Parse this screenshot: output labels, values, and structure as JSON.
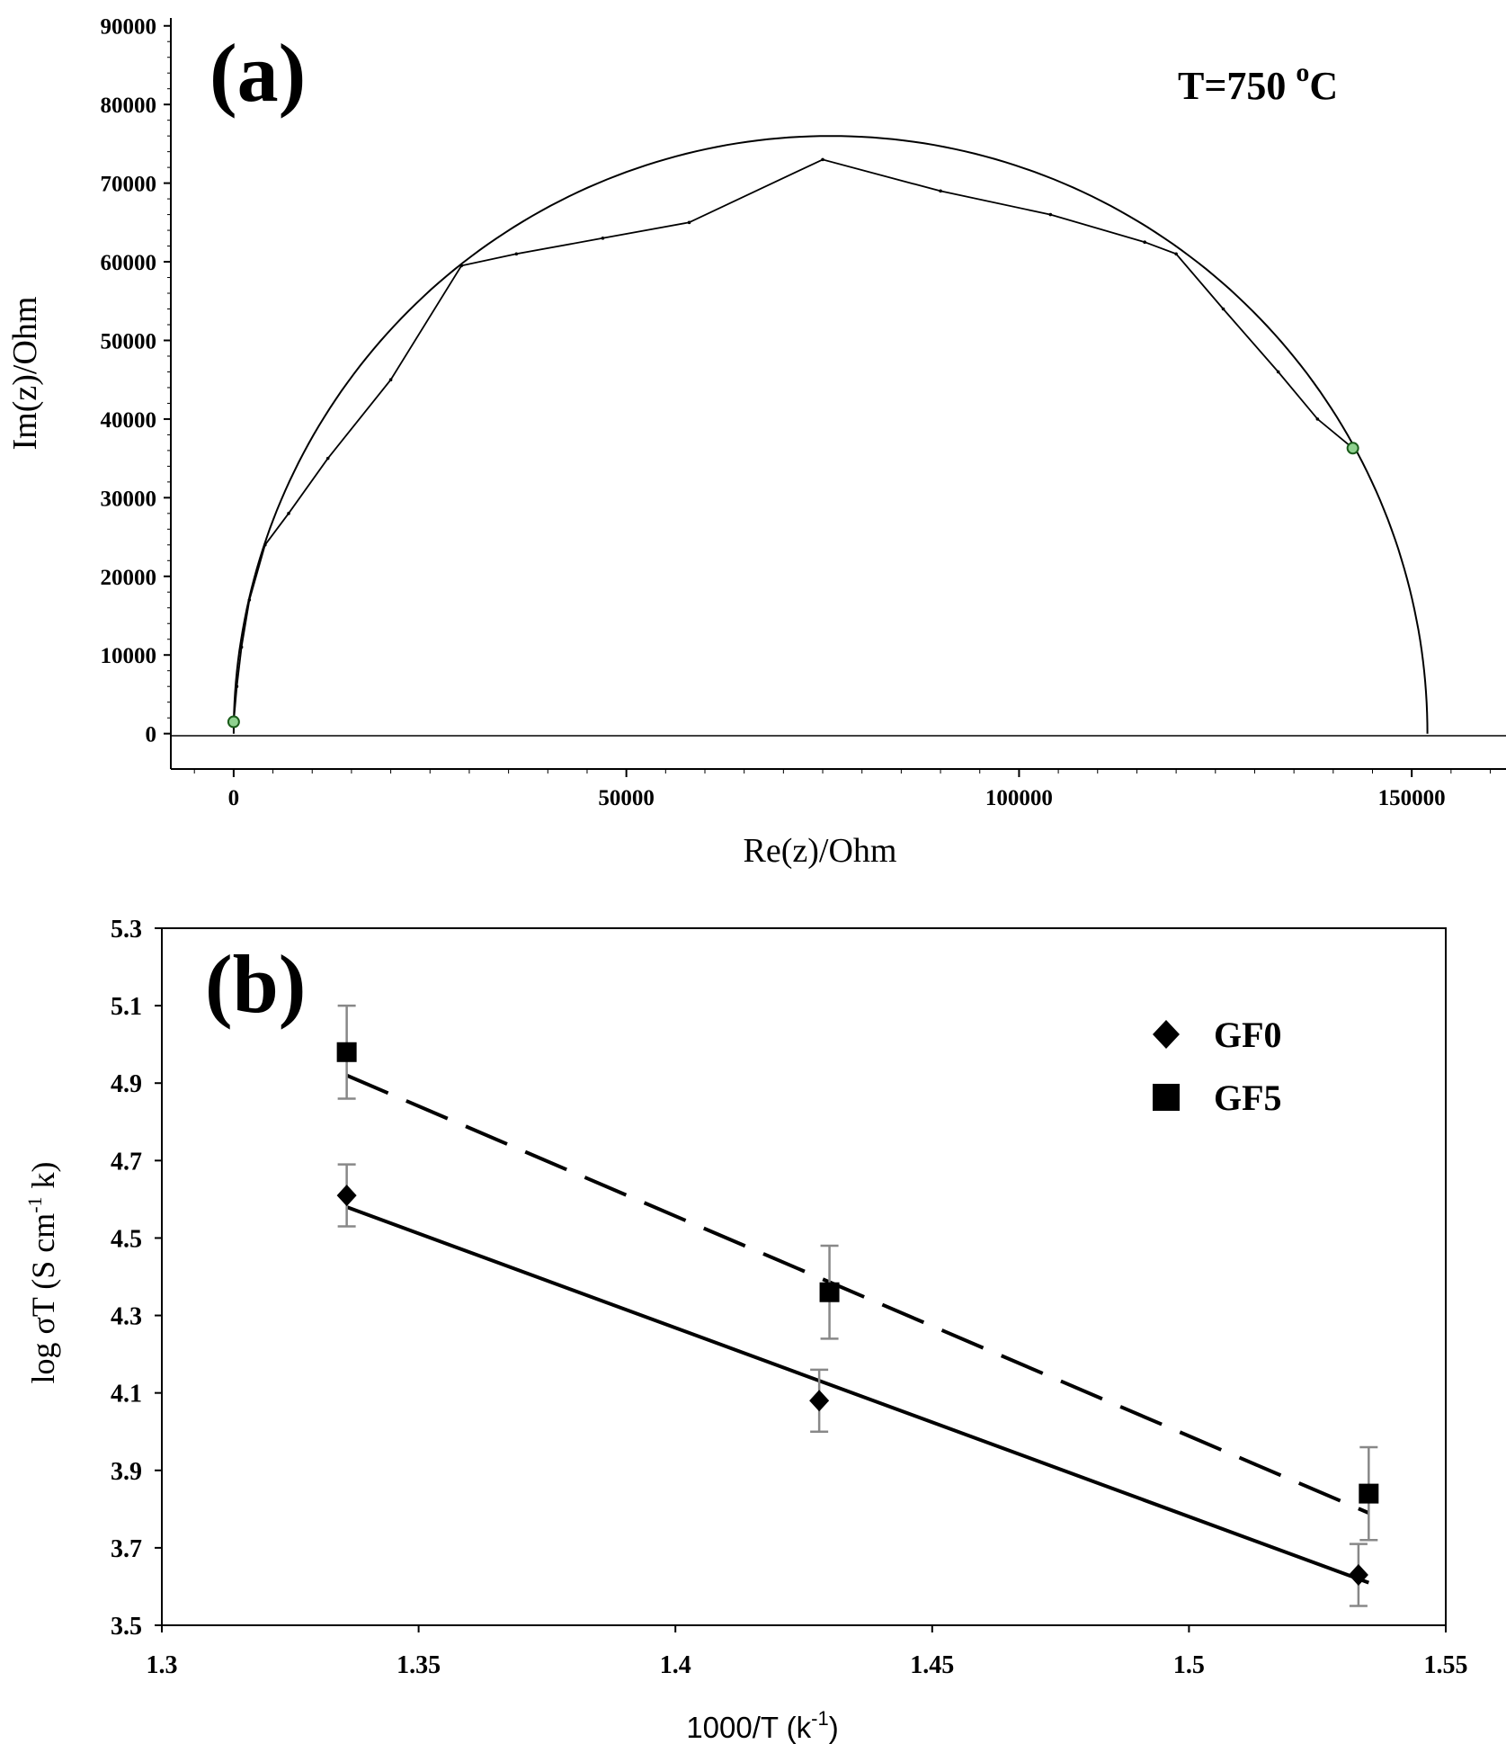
{
  "chart_data": [
    {
      "panel": "(a)",
      "type": "line",
      "annotation": {
        "base": "T=750 ",
        "sup": "o",
        "tail": "C"
      },
      "xlabel": "Re(z)/Ohm",
      "ylabel": "Im(z)/Ohm",
      "xlim": [
        -8000,
        162000
      ],
      "ylim": [
        -4500,
        91000
      ],
      "xticks": [
        0,
        50000,
        100000,
        150000
      ],
      "xtick_labels": [
        "0",
        "50000",
        "100000",
        "150000"
      ],
      "yticks": [
        0,
        10000,
        20000,
        30000,
        40000,
        50000,
        60000,
        70000,
        80000,
        90000
      ],
      "ytick_labels": [
        "0",
        "10000",
        "20000",
        "30000",
        "40000",
        "50000",
        "60000",
        "70000",
        "80000",
        "90000"
      ],
      "fit_arc": {
        "center_re": 76000,
        "center_im": 0,
        "radius": 76000
      },
      "measured": {
        "x": [
          0,
          400,
          1000,
          2000,
          4000,
          7000,
          12000,
          20000,
          29000,
          36000,
          47000,
          58000,
          75000,
          90000,
          104000,
          116000,
          120000,
          126000,
          133000,
          138000,
          142500
        ],
        "y": [
          1500,
          6000,
          11000,
          17000,
          24000,
          28000,
          35000,
          45000,
          59500,
          61000,
          63000,
          65000,
          73000,
          69000,
          66000,
          62500,
          61000,
          54000,
          46000,
          40000,
          36300
        ]
      },
      "markers": {
        "x": [
          0,
          142500
        ],
        "y": [
          1500,
          36300
        ],
        "color": "#8fd18f"
      },
      "grid": false
    },
    {
      "panel": "(b)",
      "type": "scatter",
      "xlabel": "1000/T (k",
      "xlabel_sup": "-1",
      "xlabel_tail": ")",
      "ylabel": "log σT (S cm",
      "ylabel_sup": "-1",
      "ylabel_tail": " k)",
      "xlim": [
        1.3,
        1.55
      ],
      "ylim": [
        3.5,
        5.3
      ],
      "xticks": [
        1.3,
        1.35,
        1.4,
        1.45,
        1.5,
        1.55
      ],
      "xtick_labels": [
        "1.3",
        "1.35",
        "1.4",
        "1.45",
        "1.5",
        "1.55"
      ],
      "yticks": [
        3.5,
        3.7,
        3.9,
        4.1,
        4.3,
        4.5,
        4.7,
        4.9,
        5.1,
        5.3
      ],
      "ytick_labels": [
        "3.5",
        "3.7",
        "3.9",
        "4.1",
        "4.3",
        "4.5",
        "4.7",
        "4.9",
        "5.1",
        "5.3"
      ],
      "series": [
        {
          "name": "GF0",
          "marker": "diamond",
          "x": [
            1.336,
            1.428,
            1.533
          ],
          "y": [
            4.61,
            4.08,
            3.63
          ],
          "err": [
            0.08,
            0.08,
            0.08
          ],
          "fit": {
            "x": [
              1.336,
              1.535
            ],
            "y": [
              4.58,
              3.61
            ],
            "style": "solid"
          }
        },
        {
          "name": "GF5",
          "marker": "square",
          "x": [
            1.336,
            1.43,
            1.535
          ],
          "y": [
            4.98,
            4.36,
            3.84
          ],
          "err": [
            0.12,
            0.12,
            0.12
          ],
          "fit": {
            "x": [
              1.336,
              1.535
            ],
            "y": [
              4.92,
              3.79
            ],
            "style": "dashed"
          }
        }
      ],
      "legend": "top-right",
      "grid": false
    }
  ]
}
